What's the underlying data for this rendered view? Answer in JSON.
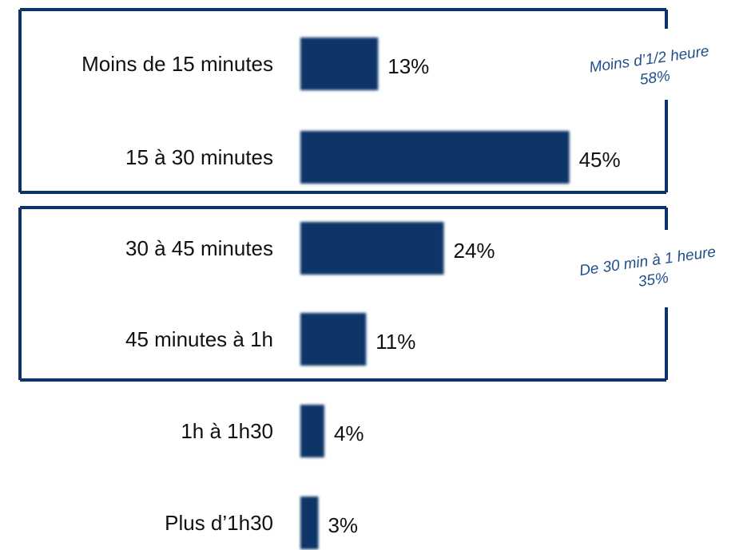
{
  "chart_data": {
    "type": "bar",
    "orientation": "horizontal",
    "categories": [
      "Moins de 15 minutes",
      "15 à 30 minutes",
      "30 à 45 minutes",
      "45 minutes à 1h",
      "1h à 1h30",
      "Plus d’1h30"
    ],
    "values": [
      13,
      45,
      24,
      11,
      4,
      3
    ],
    "value_labels": [
      "13%",
      "45%",
      "24%",
      "11%",
      "4%",
      "3%"
    ],
    "unit": "%",
    "bar_color": "#0d3468",
    "groups": [
      {
        "label_line1": "Moins d’1/2 heure",
        "label_line2": "58%",
        "members": [
          0,
          1
        ]
      },
      {
        "label_line1": "De 30 min à 1 heure",
        "label_line2": "35%",
        "members": [
          2,
          3
        ]
      }
    ],
    "group_text_color": "#1f4e8c",
    "group_border_color": "#0d3468",
    "grid": false,
    "legend": "none"
  }
}
